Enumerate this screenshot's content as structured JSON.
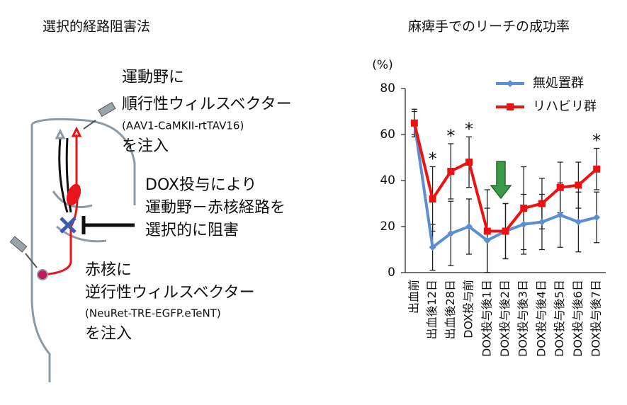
{
  "diagram": {
    "title": "選択的経路阻害法",
    "labels": [
      {
        "text": "運動野に",
        "color": "#111111"
      },
      {
        "text": "順行性ウィルスベクター",
        "color": "#e8141b"
      },
      {
        "text": "(AAV1-CaMKII-rtTAV16)",
        "color": "#e8141b"
      },
      {
        "text": "を注入",
        "color": "#111111"
      },
      {
        "text": "DOX投与により",
        "color": "#111111"
      },
      {
        "text": "運動野－赤核経路を",
        "color": "#111111"
      },
      {
        "text": "選択的に阻害",
        "color": "#111111"
      },
      {
        "text": "赤核に",
        "color": "#111111"
      },
      {
        "text": "逆行性ウィルスベクター",
        "color": "#2a4a8a"
      },
      {
        "text": "(NeuRet-TRE-EGFP.eTeNT)",
        "color": "#2a4a8a"
      },
      {
        "text": "を注入",
        "color": "#111111"
      }
    ]
  },
  "chart_data": {
    "type": "line",
    "title": "麻痺手でのリーチの成功率",
    "y_label": "(%)",
    "categories": [
      "出血前",
      "出血後12日",
      "出血後28日",
      "DOX投与前",
      "DOX投与後1日",
      "DOX投与後2日",
      "DOX投与後3日",
      "DOX投与後4日",
      "DOX投与後5日",
      "DOX投与後6日",
      "DOX投与後7日"
    ],
    "category_colors": [
      "#111111",
      "#111111",
      "#111111",
      "#111111",
      "#2e7d32",
      "#2e7d32",
      "#2e7d32",
      "#2e7d32",
      "#2e7d32",
      "#2e7d32",
      "#2e7d32"
    ],
    "series": [
      {
        "name": "無処置群",
        "color": "#5b8fd0",
        "marker": "diamond",
        "values": [
          65,
          11,
          17,
          20,
          14,
          18,
          21,
          22,
          25,
          22,
          24
        ],
        "errors": [
          5,
          10,
          14,
          12,
          14,
          12,
          13,
          12,
          14,
          13,
          11
        ]
      },
      {
        "name": "リハビリ群",
        "color": "#ee1111",
        "marker": "square",
        "values": [
          65,
          32,
          44,
          48,
          18,
          18,
          28,
          30,
          37,
          38,
          45
        ],
        "errors": [
          6,
          14,
          12,
          11,
          18,
          12,
          18,
          11,
          11,
          10,
          9
        ]
      }
    ],
    "annotations": [
      {
        "text": "*",
        "x": "出血後12日"
      },
      {
        "text": "*",
        "x": "出血後28日"
      },
      {
        "text": "*",
        "x": "DOX投与前"
      },
      {
        "text": "*",
        "x": "DOX投与後7日"
      }
    ],
    "ylim": [
      0,
      80
    ],
    "yticks": [
      0,
      20,
      40,
      60,
      80
    ],
    "legend": "upper right"
  }
}
